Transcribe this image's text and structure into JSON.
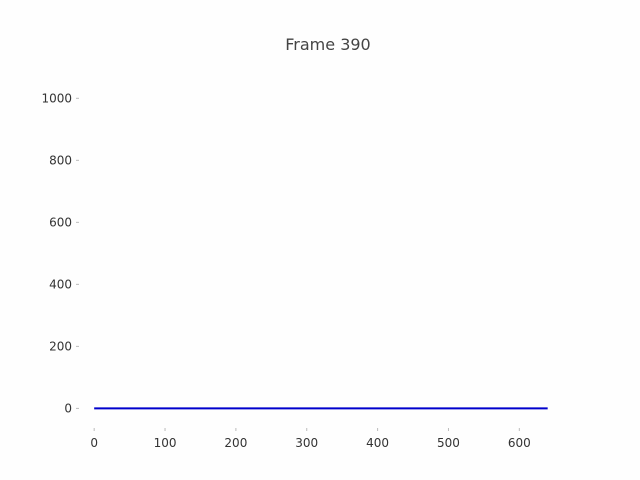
{
  "chart_data": {
    "type": "line",
    "title": "Frame 390",
    "xlabel": "",
    "ylabel": "",
    "xlim": [
      -20,
      680
    ],
    "ylim": [
      -60,
      1130
    ],
    "xticks": [
      0,
      100,
      200,
      300,
      400,
      500,
      600
    ],
    "yticks": [
      0,
      200,
      400,
      600,
      800,
      1000
    ],
    "grid": false,
    "series": [
      {
        "color": "#0000cc",
        "x": [
          0,
          640
        ],
        "y": [
          0,
          0
        ]
      }
    ]
  }
}
